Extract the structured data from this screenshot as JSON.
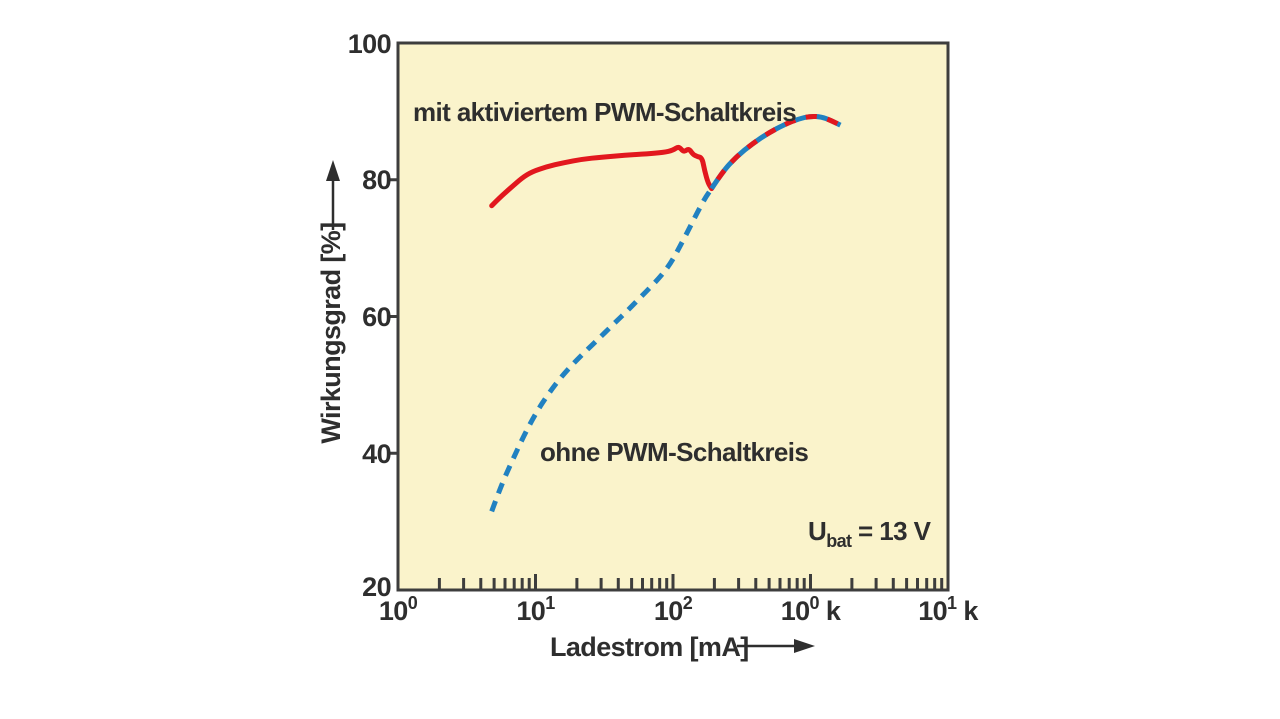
{
  "colors": {
    "red": "#e2171e",
    "blue": "#2181c1",
    "plot_bg": "#faf3cb",
    "axis": "#3d3d3d",
    "text": "#2e2e2e",
    "canvas_bg": "#ffffff"
  },
  "chart_data": {
    "type": "line",
    "grid": "off",
    "legend_position": "inline-labels",
    "x_axis": {
      "label": "Ladestrom [mA]",
      "scale": "log10",
      "unit": "mA",
      "range_mA": [
        1,
        10000
      ],
      "tick_labels": [
        {
          "base": "10",
          "exp": "0",
          "suffix": ""
        },
        {
          "base": "10",
          "exp": "1",
          "suffix": ""
        },
        {
          "base": "10",
          "exp": "2",
          "suffix": ""
        },
        {
          "base": "10",
          "exp": "0",
          "suffix": " k"
        },
        {
          "base": "10",
          "exp": "1",
          "suffix": " k"
        }
      ]
    },
    "y_axis": {
      "label": "Wirkungsgrad [%]",
      "range": [
        20,
        100
      ],
      "ticks": [
        100,
        80,
        60,
        40,
        20
      ],
      "tick_marks": [
        80,
        60,
        40
      ]
    },
    "annotation": {
      "sym": "U",
      "sub": "bat",
      "value": " = 13 V"
    },
    "series": [
      {
        "name": "mit aktiviertem PWM-Schaltkreis",
        "color_key": "red",
        "style": "solid",
        "points": [
          [
            4.8,
            76.2
          ],
          [
            5.5,
            77.4
          ],
          [
            6.5,
            78.7
          ],
          [
            8,
            80.3
          ],
          [
            9.5,
            81.2
          ],
          [
            12,
            81.9
          ],
          [
            16,
            82.5
          ],
          [
            22,
            83.0
          ],
          [
            30,
            83.3
          ],
          [
            45,
            83.6
          ],
          [
            65,
            83.8
          ],
          [
            85,
            84.0
          ],
          [
            100,
            84.3
          ],
          [
            110,
            84.9
          ],
          [
            120,
            84.0
          ],
          [
            130,
            84.6
          ],
          [
            140,
            83.7
          ],
          [
            150,
            83.4
          ],
          [
            163,
            83.2
          ],
          [
            170,
            81.3
          ],
          [
            180,
            79.5
          ],
          [
            191,
            78.7
          ]
        ]
      },
      {
        "name": "ohne PWM-Schaltkreis",
        "color_key": "blue",
        "style": "dashed",
        "points": [
          [
            4.8,
            31.5
          ],
          [
            5.6,
            35.2
          ],
          [
            6.8,
            39.0
          ],
          [
            8.2,
            42.5
          ],
          [
            10,
            45.8
          ],
          [
            12.5,
            48.8
          ],
          [
            16,
            51.6
          ],
          [
            21,
            54.1
          ],
          [
            28,
            56.5
          ],
          [
            37,
            58.9
          ],
          [
            48,
            61.1
          ],
          [
            62,
            63.4
          ],
          [
            80,
            65.7
          ],
          [
            95,
            67.6
          ],
          [
            110,
            69.9
          ],
          [
            130,
            72.7
          ],
          [
            152,
            75.4
          ],
          [
            172,
            77.4
          ],
          [
            191,
            78.7
          ]
        ]
      },
      {
        "color_key": "red+blue",
        "style": "alternating",
        "points": [
          [
            191,
            78.7
          ],
          [
            230,
            81.2
          ],
          [
            290,
            83.4
          ],
          [
            380,
            85.3
          ],
          [
            500,
            86.9
          ],
          [
            650,
            88.1
          ],
          [
            820,
            88.9
          ],
          [
            1000,
            89.3
          ],
          [
            1200,
            89.2
          ],
          [
            1400,
            88.7
          ],
          [
            1650,
            88.0
          ]
        ]
      }
    ]
  }
}
